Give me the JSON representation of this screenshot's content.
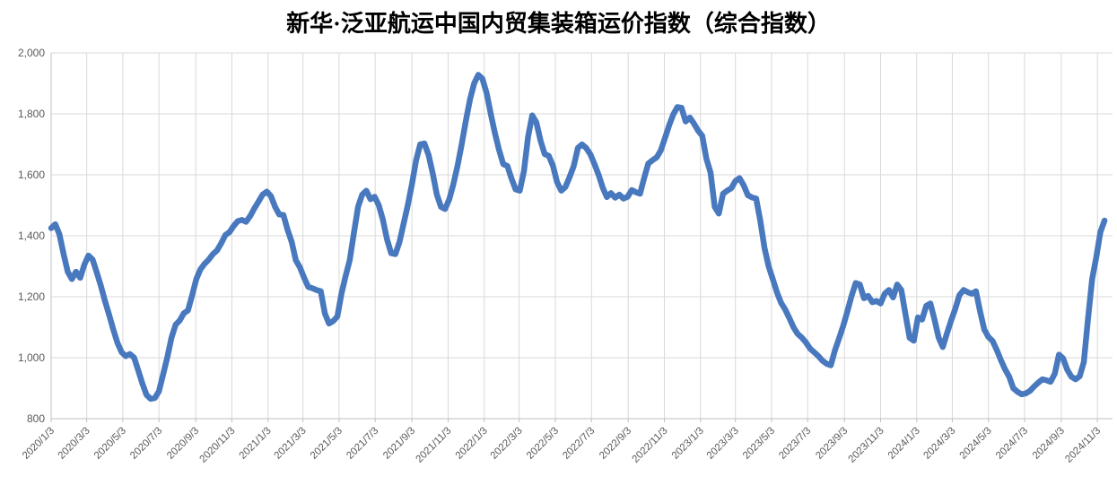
{
  "title": "新华·泛亚航运中国内贸集装箱运价指数（综合指数）",
  "colors": {
    "line": "#4878BE",
    "grid": "#D9D9D9",
    "axis": "#BFBFBF",
    "tick_label": "#595959",
    "title_color": "#000000",
    "background": "#FFFFFF"
  },
  "y_axis": {
    "labels_top_to_bottom": [
      "2,000",
      "1,800",
      "1,600",
      "1,400",
      "1,200",
      "1,000",
      "800"
    ],
    "min": 800,
    "max": 2000,
    "step": 200
  },
  "x_axis": {
    "labels": [
      "2020/1/3",
      "2020/3/3",
      "2020/5/3",
      "2020/7/3",
      "2020/9/3",
      "2020/11/3",
      "2021/1/3",
      "2021/3/3",
      "2021/5/3",
      "2021/7/3",
      "2021/9/3",
      "2021/11/3",
      "2022/1/3",
      "2022/3/3",
      "2022/5/3",
      "2022/7/3",
      "2022/9/3",
      "2022/11/3",
      "2023/1/3",
      "2023/3/3",
      "2023/5/3",
      "2023/7/3",
      "2023/9/3",
      "2023/11/3",
      "2024/1/3",
      "2024/3/3",
      "2024/5/3",
      "2024/7/3",
      "2024/9/3",
      "2024/11/3"
    ]
  },
  "chart_data": {
    "type": "line",
    "title": "新华·泛亚航运中国内贸集装箱运价指数（综合指数）",
    "xlabel": "",
    "ylabel": "",
    "ylim": [
      800,
      2000
    ],
    "ytick_step": 200,
    "grid": true,
    "legend": "none",
    "series": [
      {
        "name": "综合指数",
        "start_date": "2020-01-03",
        "interval_days": 7,
        "values": [
          1425,
          1438,
          1405,
          1340,
          1282,
          1258,
          1282,
          1262,
          1305,
          1335,
          1322,
          1280,
          1235,
          1185,
          1140,
          1092,
          1048,
          1018,
          1005,
          1012,
          1000,
          958,
          915,
          878,
          865,
          868,
          890,
          945,
          1000,
          1065,
          1108,
          1122,
          1146,
          1155,
          1205,
          1258,
          1290,
          1308,
          1322,
          1340,
          1352,
          1375,
          1402,
          1412,
          1432,
          1448,
          1452,
          1446,
          1465,
          1490,
          1512,
          1535,
          1545,
          1530,
          1495,
          1470,
          1468,
          1420,
          1380,
          1320,
          1296,
          1262,
          1232,
          1228,
          1222,
          1218,
          1145,
          1112,
          1120,
          1135,
          1210,
          1268,
          1320,
          1408,
          1495,
          1535,
          1548,
          1520,
          1528,
          1500,
          1452,
          1388,
          1343,
          1340,
          1380,
          1440,
          1500,
          1570,
          1648,
          1700,
          1703,
          1665,
          1605,
          1535,
          1495,
          1488,
          1520,
          1570,
          1630,
          1700,
          1778,
          1848,
          1900,
          1928,
          1915,
          1868,
          1800,
          1737,
          1682,
          1635,
          1629,
          1588,
          1552,
          1548,
          1612,
          1725,
          1795,
          1772,
          1712,
          1668,
          1662,
          1630,
          1576,
          1548,
          1560,
          1592,
          1628,
          1688,
          1700,
          1688,
          1668,
          1635,
          1600,
          1558,
          1527,
          1540,
          1525,
          1535,
          1522,
          1528,
          1550,
          1543,
          1538,
          1590,
          1637,
          1648,
          1657,
          1680,
          1720,
          1762,
          1798,
          1822,
          1820,
          1775,
          1788,
          1768,
          1745,
          1728,
          1652,
          1607,
          1495,
          1473,
          1538,
          1548,
          1556,
          1580,
          1589,
          1565,
          1533,
          1526,
          1522,
          1448,
          1360,
          1300,
          1258,
          1215,
          1180,
          1158,
          1130,
          1100,
          1078,
          1066,
          1050,
          1030,
          1018,
          1005,
          990,
          980,
          975,
          1025,
          1064,
          1105,
          1152,
          1202,
          1245,
          1240,
          1195,
          1203,
          1182,
          1186,
          1178,
          1210,
          1222,
          1198,
          1240,
          1222,
          1143,
          1065,
          1056,
          1132,
          1125,
          1170,
          1178,
          1125,
          1066,
          1035,
          1080,
          1122,
          1160,
          1205,
          1222,
          1215,
          1210,
          1218,
          1152,
          1092,
          1068,
          1055,
          1026,
          992,
          962,
          938,
          900,
          888,
          880,
          883,
          891,
          905,
          918,
          929,
          926,
          921,
          948,
          1010,
          998,
          961,
          938,
          929,
          939,
          985,
          1125,
          1258,
          1330,
          1412,
          1450
        ]
      }
    ],
    "x_tick_labels": [
      "2020/1/3",
      "2020/3/3",
      "2020/5/3",
      "2020/7/3",
      "2020/9/3",
      "2020/11/3",
      "2021/1/3",
      "2021/3/3",
      "2021/5/3",
      "2021/7/3",
      "2021/9/3",
      "2021/11/3",
      "2022/1/3",
      "2022/3/3",
      "2022/5/3",
      "2022/7/3",
      "2022/9/3",
      "2022/11/3",
      "2023/1/3",
      "2023/3/3",
      "2023/5/3",
      "2023/7/3",
      "2023/9/3",
      "2023/11/3",
      "2024/1/3",
      "2024/3/3",
      "2024/5/3",
      "2024/7/3",
      "2024/9/3",
      "2024/11/3"
    ]
  }
}
